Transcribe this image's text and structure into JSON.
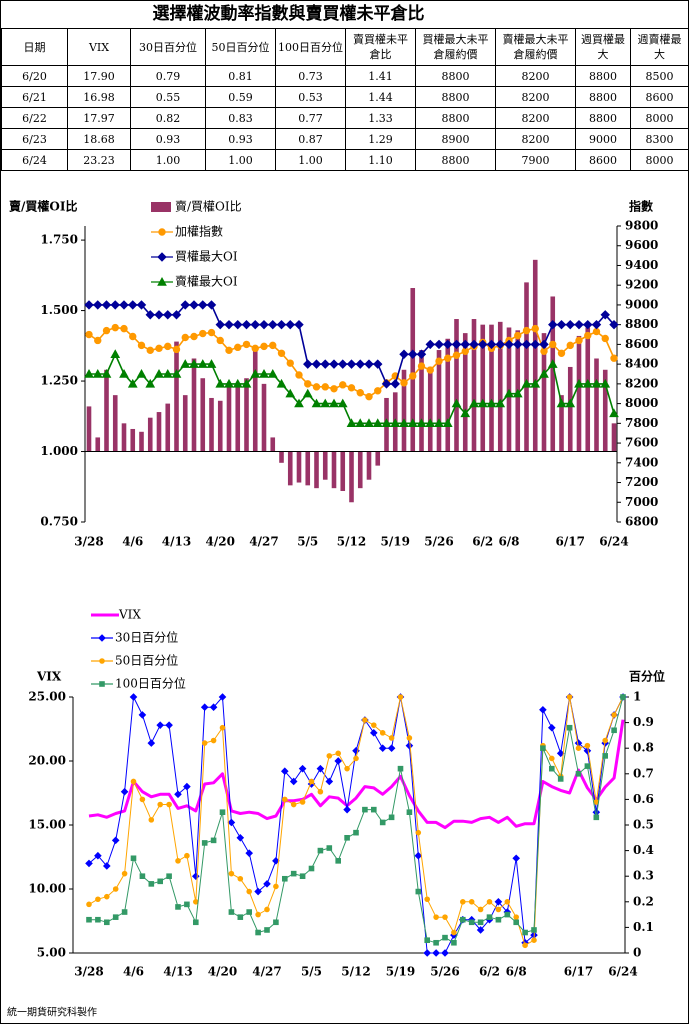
{
  "table": {
    "title": "選擇權波動率指數與賣買權未平倉比",
    "columns": [
      "日期",
      "VIX",
      "30日百分位",
      "50日百分位",
      "100日百分位",
      "賣買權未平倉比",
      "買權最大未平倉履約價",
      "賣權最大未平倉履約價",
      "週買權最大",
      "週賣權最大"
    ],
    "rows": [
      [
        "6/20",
        "17.90",
        "0.79",
        "0.81",
        "0.73",
        "1.41",
        "8800",
        "8200",
        "8800",
        "8500"
      ],
      [
        "6/21",
        "16.98",
        "0.55",
        "0.59",
        "0.53",
        "1.44",
        "8800",
        "8200",
        "8800",
        "8600"
      ],
      [
        "6/22",
        "17.97",
        "0.82",
        "0.83",
        "0.77",
        "1.33",
        "8800",
        "8200",
        "8800",
        "8000"
      ],
      [
        "6/23",
        "18.68",
        "0.93",
        "0.93",
        "0.87",
        "1.29",
        "8900",
        "8200",
        "9000",
        "8300"
      ],
      [
        "6/24",
        "23.23",
        "1.00",
        "1.00",
        "1.00",
        "1.10",
        "8800",
        "7900",
        "8600",
        "8000"
      ]
    ]
  },
  "chart_data": [
    {
      "type": "combo",
      "y_label": "賣/買權OI比",
      "y2_label": "指數",
      "categories": [
        "3/28",
        null,
        null,
        null,
        null,
        "4/6",
        null,
        null,
        null,
        null,
        "4/13",
        null,
        null,
        null,
        null,
        "4/20",
        null,
        null,
        null,
        null,
        "4/27",
        null,
        null,
        null,
        null,
        "5/5",
        null,
        null,
        null,
        null,
        "5/12",
        null,
        null,
        null,
        null,
        "5/19",
        null,
        null,
        null,
        null,
        "5/26",
        null,
        null,
        null,
        null,
        "6/2",
        null,
        null,
        "6/8",
        null,
        null,
        null,
        null,
        null,
        null,
        "6/17",
        null,
        null,
        null,
        null,
        "6/24"
      ],
      "ylim": [
        0.75,
        1.8
      ],
      "yticks": [
        {
          "value": 0.75,
          "label": "0.750"
        },
        {
          "value": 1,
          "label": "1.000"
        },
        {
          "value": 1.25,
          "label": "1.250"
        },
        {
          "value": 1.5,
          "label": "1.500"
        },
        {
          "value": 1.75,
          "label": "1.750"
        }
      ],
      "y2lim": [
        6800,
        9800
      ],
      "y2ticks": [
        6800,
        7000,
        7200,
        7400,
        7600,
        7800,
        8000,
        8200,
        8400,
        8600,
        8800,
        9000,
        9200,
        9400,
        9600,
        9800
      ],
      "xaxis_crosses": 1,
      "series": [
        {
          "name": "賣/買權OI比",
          "type": "bar",
          "color": "#993366",
          "values": [
            1.16,
            1.05,
            1.29,
            1.2,
            1.1,
            1.08,
            1.07,
            1.12,
            1.14,
            1.17,
            1.39,
            1.2,
            1.33,
            1.26,
            1.19,
            1.18,
            1.23,
            1.23,
            1.26,
            1.36,
            1.24,
            1.05,
            0.96,
            0.88,
            0.89,
            0.88,
            0.87,
            0.9,
            0.87,
            0.86,
            0.82,
            0.87,
            0.9,
            0.95,
            1.19,
            1.21,
            1.29,
            1.58,
            1.36,
            1.3,
            1.36,
            1.4,
            1.47,
            1.42,
            1.47,
            1.45,
            1.45,
            1.46,
            1.44,
            1.43,
            1.6,
            1.68,
            1.42,
            1.55,
            1.2,
            1.3,
            1.41,
            1.44,
            1.33,
            1.29,
            1.1
          ]
        },
        {
          "name": "加權指數",
          "type": "line",
          "axis": "y2",
          "color": "#ff9900",
          "marker": "circle",
          "values": [
            8700,
            8640,
            8740,
            8770,
            8760,
            8680,
            8590,
            8540,
            8560,
            8580,
            8550,
            8670,
            8680,
            8710,
            8720,
            8640,
            8540,
            8570,
            8600,
            8560,
            8580,
            8590,
            8510,
            8410,
            8290,
            8200,
            8170,
            8170,
            8150,
            8190,
            8160,
            8110,
            8070,
            8130,
            8210,
            8280,
            8210,
            8280,
            8380,
            8340,
            8430,
            8460,
            8490,
            8530,
            8580,
            8620,
            8560,
            8590,
            8640,
            8690,
            8740,
            8760,
            8530,
            8600,
            8510,
            8590,
            8640,
            8690,
            8730,
            8660,
            8460
          ]
        },
        {
          "name": "買權最大OI",
          "type": "line",
          "axis": "y2",
          "color": "#000099",
          "marker": "diamond",
          "values": [
            9000,
            9000,
            9000,
            9000,
            9000,
            9000,
            9000,
            8900,
            8900,
            8900,
            8900,
            9000,
            9000,
            9000,
            9000,
            8800,
            8800,
            8800,
            8800,
            8800,
            8800,
            8800,
            8800,
            8800,
            8800,
            8400,
            8400,
            8400,
            8400,
            8400,
            8400,
            8400,
            8400,
            8400,
            8200,
            8200,
            8500,
            8500,
            8500,
            8600,
            8600,
            8600,
            8600,
            8600,
            8600,
            8600,
            8600,
            8600,
            8600,
            8600,
            8600,
            8600,
            8600,
            8800,
            8800,
            8800,
            8800,
            8800,
            8800,
            8900,
            8800
          ]
        },
        {
          "name": "賣權最大OI",
          "type": "line",
          "axis": "y2",
          "color": "#008000",
          "marker": "triangle",
          "values": [
            8300,
            8300,
            8300,
            8500,
            8300,
            8200,
            8300,
            8200,
            8300,
            8300,
            8300,
            8400,
            8400,
            8400,
            8400,
            8200,
            8200,
            8200,
            8200,
            8300,
            8300,
            8300,
            8200,
            8100,
            8000,
            8100,
            8000,
            8000,
            8000,
            8000,
            7800,
            7800,
            7800,
            7800,
            7800,
            7800,
            7800,
            7800,
            7800,
            7800,
            7800,
            7800,
            8000,
            7900,
            8000,
            8000,
            8000,
            8000,
            8100,
            8100,
            8200,
            8200,
            8300,
            8400,
            8000,
            8000,
            8200,
            8200,
            8200,
            8200,
            7900
          ]
        }
      ]
    },
    {
      "type": "line",
      "y_label": "VIX",
      "y2_label": "百分位",
      "categories": [
        "3/28",
        null,
        null,
        null,
        null,
        "4/6",
        null,
        null,
        null,
        null,
        "4/13",
        null,
        null,
        null,
        null,
        "4/20",
        null,
        null,
        null,
        null,
        "4/27",
        null,
        null,
        null,
        null,
        "5/5",
        null,
        null,
        null,
        null,
        "5/12",
        null,
        null,
        null,
        null,
        "5/19",
        null,
        null,
        null,
        null,
        "5/26",
        null,
        null,
        null,
        null,
        "6/2",
        null,
        null,
        "6/8",
        null,
        null,
        null,
        null,
        null,
        null,
        "6/17",
        null,
        null,
        null,
        null,
        "6/24"
      ],
      "ylim": [
        5,
        25
      ],
      "yticks": [
        {
          "value": 5,
          "label": "5.00"
        },
        {
          "value": 10,
          "label": "10.00"
        },
        {
          "value": 15,
          "label": "15.00"
        },
        {
          "value": 20,
          "label": "20.00"
        },
        {
          "value": 25,
          "label": "25.00"
        }
      ],
      "y2lim": [
        0,
        1
      ],
      "y2ticks": [
        0,
        0.1,
        0.2,
        0.3,
        0.4,
        0.5,
        0.6,
        0.7,
        0.8,
        0.9,
        1
      ],
      "xaxis_crosses": 5,
      "series": [
        {
          "name": "VIX",
          "type": "line",
          "color": "#ff00ff",
          "marker": "none",
          "values": [
            15.7,
            15.8,
            15.6,
            15.9,
            16.1,
            18.4,
            17.6,
            17.2,
            17.4,
            17.4,
            16.3,
            16.5,
            16.1,
            18.2,
            18.3,
            19.0,
            16.1,
            15.9,
            16.0,
            15.9,
            15.5,
            15.7,
            16.9,
            16.9,
            17.0,
            17.4,
            16.5,
            17.2,
            17.1,
            16.5,
            17.1,
            18.0,
            17.9,
            17.4,
            18.0,
            18.8,
            17.3,
            16.1,
            15.2,
            15.2,
            14.8,
            15.3,
            15.3,
            15.2,
            15.5,
            15.6,
            15.2,
            15.6,
            14.9,
            15.1,
            15.1,
            18.4,
            18.0,
            17.7,
            17.5,
            19.3,
            17.9,
            16.98,
            17.97,
            18.68,
            23.23
          ]
        },
        {
          "name": "30日百分位",
          "type": "line",
          "axis": "y2",
          "color": "#0000ff",
          "marker": "diamond",
          "values": [
            0.35,
            0.38,
            0.34,
            0.44,
            0.63,
            1.0,
            0.93,
            0.82,
            0.89,
            0.89,
            0.62,
            0.65,
            0.3,
            0.96,
            0.96,
            1.0,
            0.51,
            0.45,
            0.39,
            0.24,
            0.27,
            0.36,
            0.71,
            0.67,
            0.72,
            0.66,
            0.72,
            0.67,
            0.75,
            0.56,
            0.79,
            0.91,
            0.86,
            0.8,
            0.8,
            1.0,
            0.81,
            0.38,
            0.0,
            0.0,
            0.0,
            0.07,
            0.13,
            0.13,
            0.09,
            0.13,
            0.2,
            0.16,
            0.37,
            0.04,
            0.07,
            0.95,
            0.88,
            0.78,
            1.0,
            0.82,
            0.79,
            0.55,
            0.82,
            0.93,
            1.0
          ]
        },
        {
          "name": "50日百分位",
          "type": "line",
          "axis": "y2",
          "color": "#ffa500",
          "marker": "circle",
          "values": [
            0.19,
            0.21,
            0.22,
            0.25,
            0.31,
            0.67,
            0.6,
            0.52,
            0.58,
            0.58,
            0.36,
            0.38,
            0.2,
            0.82,
            0.83,
            0.88,
            0.31,
            0.29,
            0.24,
            0.15,
            0.17,
            0.26,
            0.6,
            0.58,
            0.59,
            0.67,
            0.63,
            0.77,
            0.78,
            0.72,
            0.76,
            0.91,
            0.89,
            0.86,
            0.84,
            1.0,
            0.84,
            0.47,
            0.21,
            0.14,
            0.14,
            0.08,
            0.2,
            0.2,
            0.17,
            0.2,
            0.17,
            0.2,
            0.14,
            0.03,
            0.05,
            0.81,
            0.76,
            0.69,
            1.0,
            0.8,
            0.81,
            0.59,
            0.83,
            0.93,
            1.0
          ]
        },
        {
          "name": "100日百分位",
          "type": "line",
          "axis": "y2",
          "color": "#339966",
          "marker": "square",
          "values": [
            0.13,
            0.13,
            0.12,
            0.14,
            0.16,
            0.37,
            0.3,
            0.27,
            0.28,
            0.3,
            0.18,
            0.19,
            0.12,
            0.43,
            0.44,
            0.55,
            0.16,
            0.14,
            0.16,
            0.08,
            0.09,
            0.12,
            0.29,
            0.31,
            0.3,
            0.33,
            0.4,
            0.41,
            0.36,
            0.45,
            0.47,
            0.56,
            0.56,
            0.51,
            0.53,
            0.72,
            0.55,
            0.24,
            0.05,
            0.04,
            0.06,
            0.04,
            0.13,
            0.12,
            0.12,
            0.14,
            0.13,
            0.15,
            0.12,
            0.08,
            0.09,
            0.8,
            0.72,
            0.68,
            0.88,
            0.7,
            0.73,
            0.53,
            0.77,
            0.87,
            1.0
          ]
        }
      ]
    }
  ],
  "footer": "統一期貨研究科製作"
}
